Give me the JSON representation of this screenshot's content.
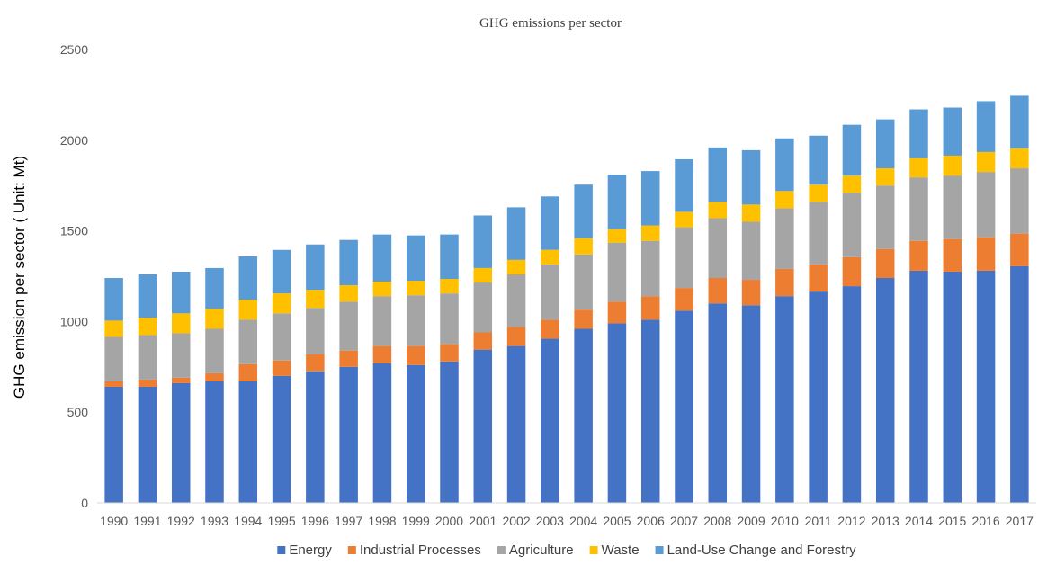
{
  "chart_data": {
    "type": "bar",
    "stacked": true,
    "title": "GHG emissions per sector",
    "xlabel": "",
    "ylabel": "GHG emission per sector ( Unit: Mt)",
    "ylim": [
      0,
      2500
    ],
    "yticks": [
      0,
      500,
      1000,
      1500,
      2000,
      2500
    ],
    "grid": false,
    "legend_position": "bottom",
    "categories": [
      "1990",
      "1991",
      "1992",
      "1993",
      "1994",
      "1995",
      "1996",
      "1997",
      "1998",
      "1999",
      "2000",
      "2001",
      "2002",
      "2003",
      "2004",
      "2005",
      "2006",
      "2007",
      "2008",
      "2009",
      "2010",
      "2011",
      "2012",
      "2013",
      "2014",
      "2015",
      "2016",
      "2017"
    ],
    "series": [
      {
        "name": "Energy",
        "color": "#4472C4",
        "values": [
          640,
          640,
          660,
          670,
          670,
          700,
          725,
          750,
          770,
          760,
          780,
          845,
          865,
          905,
          960,
          990,
          1010,
          1060,
          1100,
          1090,
          1140,
          1165,
          1195,
          1240,
          1280,
          1275,
          1280,
          1305
        ]
      },
      {
        "name": "Industrial Processes",
        "color": "#ED7D31",
        "values": [
          30,
          40,
          30,
          45,
          95,
          85,
          95,
          90,
          95,
          105,
          95,
          95,
          105,
          105,
          105,
          120,
          130,
          125,
          140,
          140,
          150,
          150,
          160,
          160,
          165,
          180,
          185,
          180
        ]
      },
      {
        "name": "Agriculture",
        "color": "#A5A5A5",
        "values": [
          245,
          245,
          245,
          245,
          245,
          260,
          255,
          270,
          275,
          280,
          280,
          275,
          290,
          305,
          305,
          325,
          305,
          335,
          330,
          320,
          335,
          345,
          355,
          350,
          350,
          350,
          360,
          360
        ]
      },
      {
        "name": "Waste",
        "color": "#FFC000",
        "values": [
          90,
          95,
          110,
          110,
          110,
          110,
          100,
          90,
          80,
          80,
          80,
          80,
          80,
          80,
          90,
          75,
          85,
          85,
          90,
          95,
          95,
          95,
          95,
          95,
          105,
          110,
          110,
          110
        ]
      },
      {
        "name": "Land-Use Change and Forestry",
        "color": "#5B9BD5",
        "values": [
          235,
          240,
          230,
          225,
          240,
          240,
          250,
          250,
          260,
          250,
          245,
          290,
          290,
          295,
          295,
          300,
          300,
          290,
          300,
          300,
          290,
          270,
          280,
          270,
          270,
          265,
          280,
          290
        ]
      }
    ]
  }
}
